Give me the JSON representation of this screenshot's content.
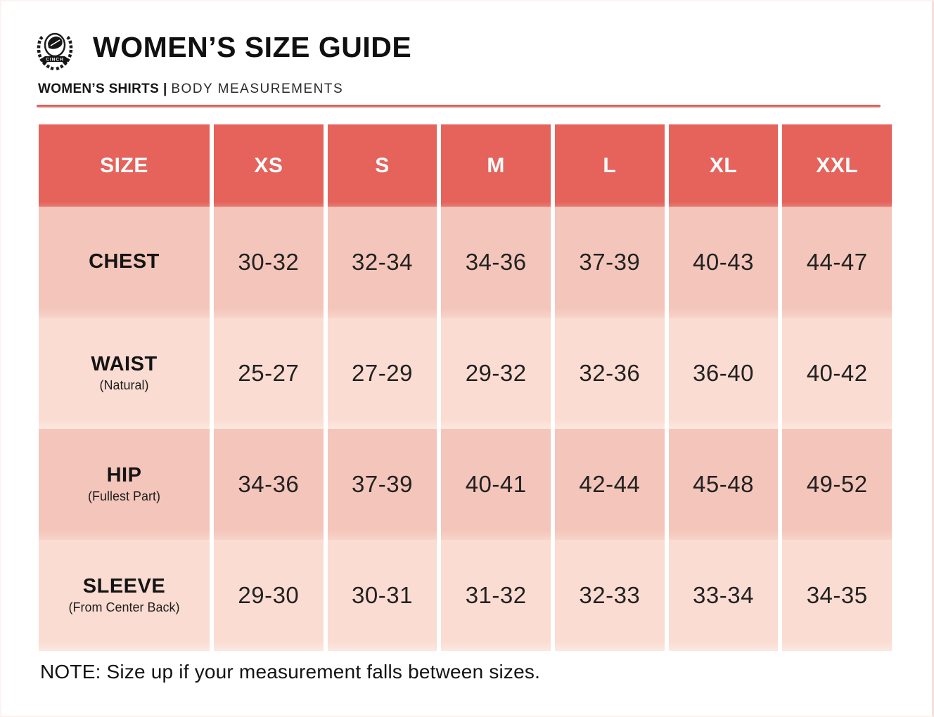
{
  "page": {
    "title": "WOMEN’S SIZE GUIDE",
    "subtitle_primary": "WOMEN’S SHIRTS",
    "subtitle_divider": "|",
    "subtitle_secondary": "BODY MEASUREMENTS",
    "note": "NOTE: Size up if your measurement falls between sizes.",
    "logo_text": "CINCH"
  },
  "colors": {
    "header_bg": "#e5635b",
    "row_dark": "#f4c5ba",
    "row_light": "#fadcd2",
    "rule_red": "#d4625c",
    "header_text": "#ffffff",
    "body_text": "#1b1b1b"
  },
  "table": {
    "columns": [
      "SIZE",
      "XS",
      "S",
      "M",
      "L",
      "XL",
      "XXL"
    ],
    "rows": [
      {
        "label": "CHEST",
        "sublabel": "",
        "shade": "dark",
        "values": [
          "30-32",
          "32-34",
          "34-36",
          "37-39",
          "40-43",
          "44-47"
        ]
      },
      {
        "label": "WAIST",
        "sublabel": "(Natural)",
        "shade": "light",
        "values": [
          "25-27",
          "27-29",
          "29-32",
          "32-36",
          "36-40",
          "40-42"
        ]
      },
      {
        "label": "HIP",
        "sublabel": "(Fullest Part)",
        "shade": "dark",
        "values": [
          "34-36",
          "37-39",
          "40-41",
          "42-44",
          "45-48",
          "49-52"
        ]
      },
      {
        "label": "SLEEVE",
        "sublabel": "(From Center Back)",
        "shade": "light",
        "values": [
          "29-30",
          "30-31",
          "31-32",
          "32-33",
          "33-34",
          "34-35"
        ]
      }
    ]
  }
}
